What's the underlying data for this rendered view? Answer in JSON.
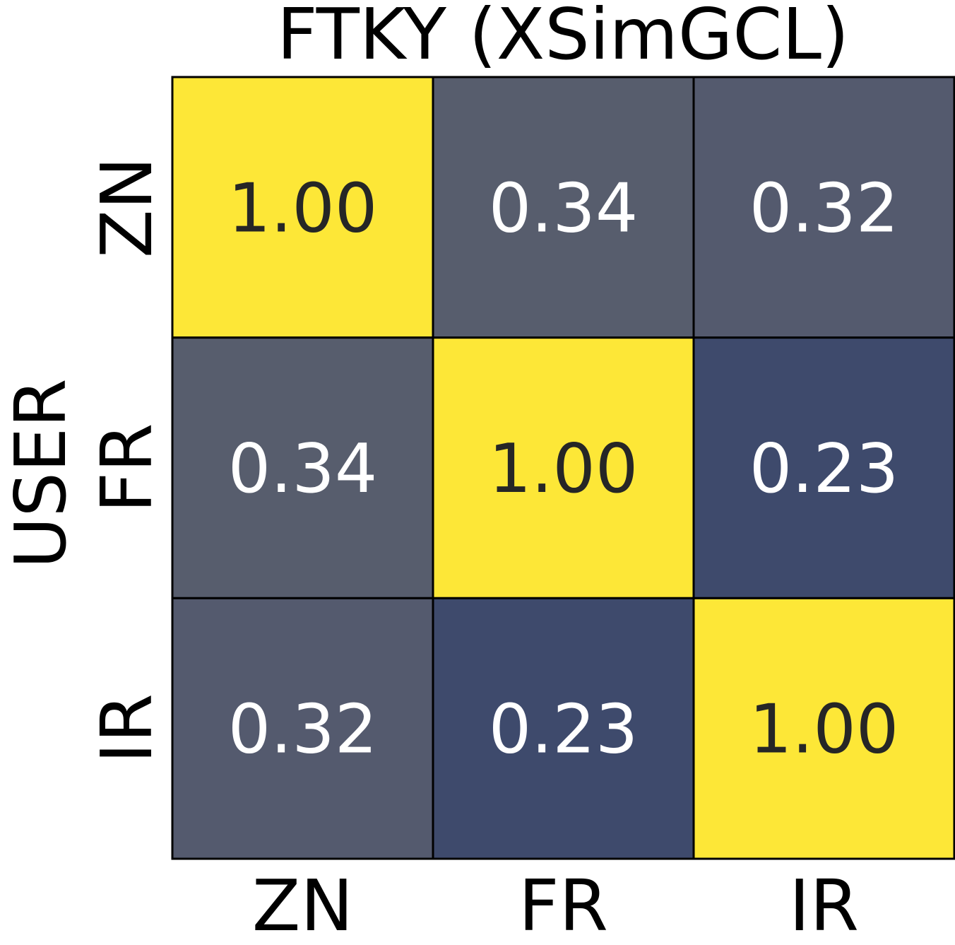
{
  "chart_data": {
    "type": "heatmap",
    "title": "FTKY (XSimGCL)",
    "xlabel": "",
    "ylabel": "USER",
    "x_categories": [
      "ZN",
      "FR",
      "IR"
    ],
    "y_categories": [
      "ZN",
      "FR",
      "IR"
    ],
    "values": [
      [
        1.0,
        0.34,
        0.32
      ],
      [
        0.34,
        1.0,
        0.23
      ],
      [
        0.32,
        0.23,
        1.0
      ]
    ],
    "labels": [
      [
        "1.00",
        "0.34",
        "0.32"
      ],
      [
        "0.34",
        "1.00",
        "0.23"
      ],
      [
        "0.32",
        "0.23",
        "1.00"
      ]
    ],
    "colormap": "cividis",
    "cell_colors": [
      [
        "#fde737",
        "#575d6d",
        "#545a6e"
      ],
      [
        "#575d6d",
        "#fde737",
        "#3e4a6c"
      ],
      [
        "#545a6e",
        "#3e4a6c",
        "#fde737"
      ]
    ],
    "text_colors": {
      "light_cell": "#262626",
      "dark_cell": "#ffffff"
    },
    "colorbar": false
  }
}
